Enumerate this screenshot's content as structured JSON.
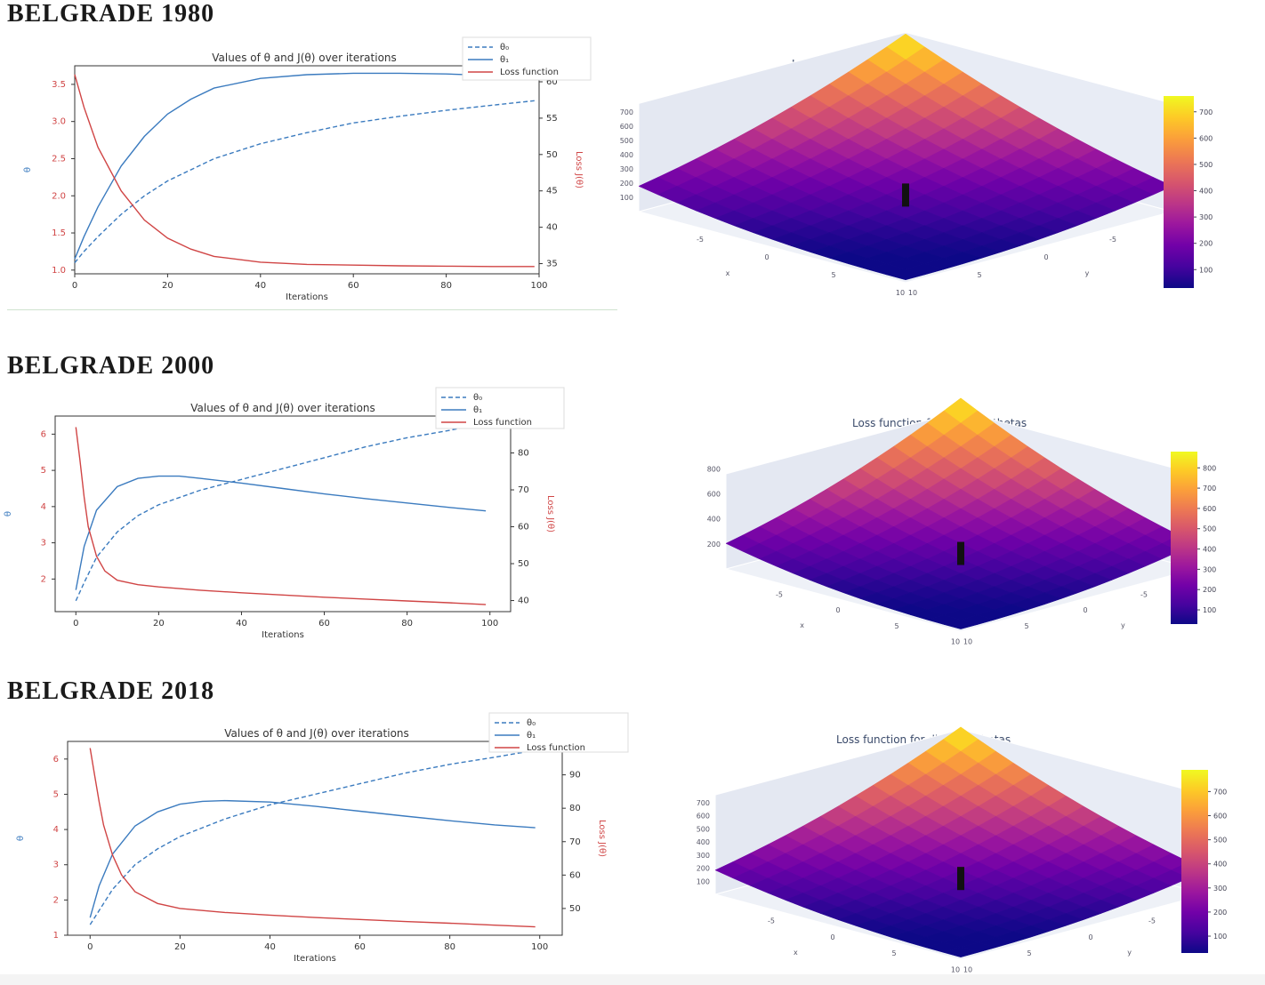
{
  "sections": [
    {
      "title": "BELGRADE 1980",
      "chart": {
        "type": "line",
        "title": "Values of θ and J(θ) over iterations",
        "xlabel": "Iterations",
        "ylabel_left": "θ",
        "ylabel_right": "Loss J(θ)",
        "xlim": [
          0,
          100
        ],
        "ylim_left": [
          0.95,
          3.75
        ],
        "ylim_right": [
          33.6,
          62.2
        ],
        "xticks": [
          0,
          20,
          40,
          60,
          80,
          100
        ],
        "yticks_left": [
          "1.0",
          "1.5",
          "2.0",
          "2.5",
          "3.0",
          "3.5"
        ],
        "yticks_left_values": [
          1.0,
          1.5,
          2.0,
          2.5,
          3.0,
          3.5
        ],
        "yticks_right": [
          35,
          40,
          45,
          50,
          55,
          60
        ],
        "legend": [
          "θ₀",
          "θ₁",
          "Loss function"
        ],
        "legend_position": "top-right",
        "series": [
          {
            "name": "θ₀",
            "axis": "left",
            "style": "dashed",
            "color": "#3b7bbf",
            "x": [
              0,
              2,
              5,
              10,
              15,
              20,
              30,
              40,
              50,
              60,
              70,
              80,
              90,
              99
            ],
            "values": [
              1.1,
              1.25,
              1.45,
              1.75,
              2.0,
              2.2,
              2.5,
              2.7,
              2.85,
              2.98,
              3.07,
              3.15,
              3.22,
              3.28
            ]
          },
          {
            "name": "θ₁",
            "axis": "left",
            "style": "solid",
            "color": "#3b7bbf",
            "x": [
              0,
              2,
              5,
              10,
              15,
              20,
              25,
              30,
              40,
              50,
              60,
              70,
              80,
              90,
              99
            ],
            "values": [
              1.15,
              1.45,
              1.85,
              2.4,
              2.8,
              3.1,
              3.3,
              3.45,
              3.58,
              3.63,
              3.65,
              3.65,
              3.64,
              3.62,
              3.6
            ]
          },
          {
            "name": "Loss function",
            "axis": "right",
            "style": "solid",
            "color": "#d04545",
            "x": [
              0,
              2,
              5,
              10,
              15,
              20,
              25,
              30,
              40,
              50,
              60,
              70,
              80,
              90,
              99
            ],
            "values": [
              61.0,
              56.5,
              51.0,
              45.0,
              41.0,
              38.5,
              37.0,
              36.0,
              35.2,
              34.9,
              34.8,
              34.7,
              34.65,
              34.6,
              34.6
            ]
          }
        ]
      },
      "surface": {
        "title": "Loss function for different thetas",
        "colorbar_ticks": [
          100,
          200,
          300,
          400,
          500,
          600,
          700
        ],
        "colorbar_range": [
          30,
          760
        ],
        "z_ticks": [
          100,
          200,
          300,
          400,
          500,
          600,
          700
        ],
        "x_ticks": [
          -5,
          0,
          5,
          10
        ],
        "y_ticks": [
          -5,
          0,
          5,
          10
        ],
        "x_label": "x",
        "y_label": "y"
      }
    },
    {
      "title": "BELGRADE 2000",
      "chart": {
        "type": "line",
        "title": "Values of θ and J(θ) over iterations",
        "xlabel": "Iterations",
        "ylabel_left": "θ",
        "ylabel_right": "Loss J(θ)",
        "xlim": [
          -5,
          105
        ],
        "ylim_left": [
          1.1,
          6.5
        ],
        "ylim_right": [
          37.0,
          90.0
        ],
        "xticks": [
          0,
          20,
          40,
          60,
          80,
          100
        ],
        "yticks_left": [
          "2",
          "3",
          "4",
          "5",
          "6"
        ],
        "yticks_left_values": [
          2,
          3,
          4,
          5,
          6
        ],
        "yticks_right": [
          40,
          50,
          60,
          70,
          80
        ],
        "legend": [
          "θ₀",
          "θ₁",
          "Loss function"
        ],
        "legend_position": "top-right",
        "series": [
          {
            "name": "θ₀",
            "axis": "left",
            "style": "dashed",
            "color": "#3b7bbf",
            "x": [
              0,
              2,
              5,
              10,
              15,
              20,
              30,
              40,
              50,
              60,
              70,
              80,
              90,
              99
            ],
            "values": [
              1.4,
              1.9,
              2.6,
              3.3,
              3.75,
              4.05,
              4.45,
              4.75,
              5.05,
              5.35,
              5.65,
              5.9,
              6.1,
              6.3
            ]
          },
          {
            "name": "θ₁",
            "axis": "left",
            "style": "solid",
            "color": "#3b7bbf",
            "x": [
              0,
              2,
              5,
              10,
              15,
              20,
              25,
              30,
              40,
              50,
              60,
              70,
              80,
              90,
              99
            ],
            "values": [
              1.7,
              2.9,
              3.9,
              4.55,
              4.78,
              4.84,
              4.84,
              4.78,
              4.65,
              4.5,
              4.35,
              4.22,
              4.1,
              3.98,
              3.88
            ]
          },
          {
            "name": "Loss function",
            "axis": "right",
            "style": "solid",
            "color": "#d04545",
            "x": [
              0,
              1,
              2,
              3,
              5,
              7,
              10,
              15,
              20,
              30,
              40,
              50,
              60,
              70,
              80,
              90,
              99
            ],
            "values": [
              87.0,
              78.0,
              68.0,
              60.0,
              52.0,
              48.0,
              45.5,
              44.3,
              43.7,
              42.8,
              42.1,
              41.5,
              40.9,
              40.4,
              39.9,
              39.4,
              38.9
            ]
          }
        ]
      },
      "surface": {
        "title": "Loss function for different thetas",
        "colorbar_ticks": [
          100,
          200,
          300,
          400,
          500,
          600,
          700,
          800
        ],
        "colorbar_range": [
          30,
          880
        ],
        "z_ticks": [
          200,
          400,
          600,
          800
        ],
        "x_ticks": [
          -5,
          0,
          5,
          10
        ],
        "y_ticks": [
          -5,
          0,
          5,
          10
        ],
        "x_label": "x",
        "y_label": "y"
      }
    },
    {
      "title": "BELGRADE 2018",
      "chart": {
        "type": "line",
        "title": "Values of θ and J(θ) over iterations",
        "xlabel": "Iterations",
        "ylabel_left": "θ",
        "ylabel_right": "Loss J(θ)",
        "xlim": [
          -5,
          105
        ],
        "ylim_left": [
          1.0,
          6.5
        ],
        "ylim_right": [
          42.0,
          100.0
        ],
        "xticks": [
          0,
          20,
          40,
          60,
          80,
          100
        ],
        "yticks_left": [
          "1",
          "2",
          "3",
          "4",
          "5",
          "6"
        ],
        "yticks_left_values": [
          1,
          2,
          3,
          4,
          5,
          6
        ],
        "yticks_right": [
          50,
          60,
          70,
          80,
          90,
          100
        ],
        "legend": [
          "θ₀",
          "θ₁",
          "Loss function"
        ],
        "legend_position": "top-right",
        "series": [
          {
            "name": "θ₀",
            "axis": "left",
            "style": "dashed",
            "color": "#3b7bbf",
            "x": [
              0,
              2,
              5,
              10,
              15,
              20,
              30,
              40,
              50,
              60,
              70,
              80,
              90,
              99
            ],
            "values": [
              1.3,
              1.7,
              2.3,
              3.0,
              3.45,
              3.8,
              4.3,
              4.7,
              5.0,
              5.3,
              5.6,
              5.85,
              6.05,
              6.25
            ]
          },
          {
            "name": "θ₁",
            "axis": "left",
            "style": "solid",
            "color": "#3b7bbf",
            "x": [
              0,
              2,
              5,
              10,
              15,
              20,
              25,
              30,
              40,
              50,
              60,
              70,
              80,
              90,
              99
            ],
            "values": [
              1.5,
              2.4,
              3.3,
              4.1,
              4.5,
              4.72,
              4.8,
              4.82,
              4.78,
              4.66,
              4.52,
              4.38,
              4.25,
              4.13,
              4.05
            ]
          },
          {
            "name": "Loss function",
            "axis": "right",
            "style": "solid",
            "color": "#d04545",
            "x": [
              0,
              1,
              2,
              3,
              5,
              7,
              10,
              15,
              20,
              30,
              40,
              50,
              60,
              70,
              80,
              90,
              99
            ],
            "values": [
              98.0,
              90.0,
              82.0,
              75.0,
              66.0,
              60.0,
              55.0,
              51.5,
              50.0,
              48.8,
              48.0,
              47.3,
              46.7,
              46.1,
              45.6,
              45.0,
              44.5
            ]
          }
        ]
      },
      "surface": {
        "title": "Loss function for different thetas",
        "colorbar_ticks": [
          100,
          200,
          300,
          400,
          500,
          600,
          700
        ],
        "colorbar_range": [
          30,
          790
        ],
        "z_ticks": [
          100,
          200,
          300,
          400,
          500,
          600,
          700
        ],
        "x_ticks": [
          -5,
          0,
          5,
          10
        ],
        "y_ticks": [
          -5,
          0,
          5,
          10
        ],
        "x_label": "x",
        "y_label": "y"
      }
    }
  ],
  "colors": {
    "theta": "#3b7bbf",
    "loss": "#d04545",
    "colorscale": [
      "#0d0887",
      "#46039f",
      "#7201a8",
      "#9c179e",
      "#bd3786",
      "#d8576b",
      "#ed7953",
      "#fb9f3a",
      "#fdca26",
      "#f0f921"
    ]
  }
}
